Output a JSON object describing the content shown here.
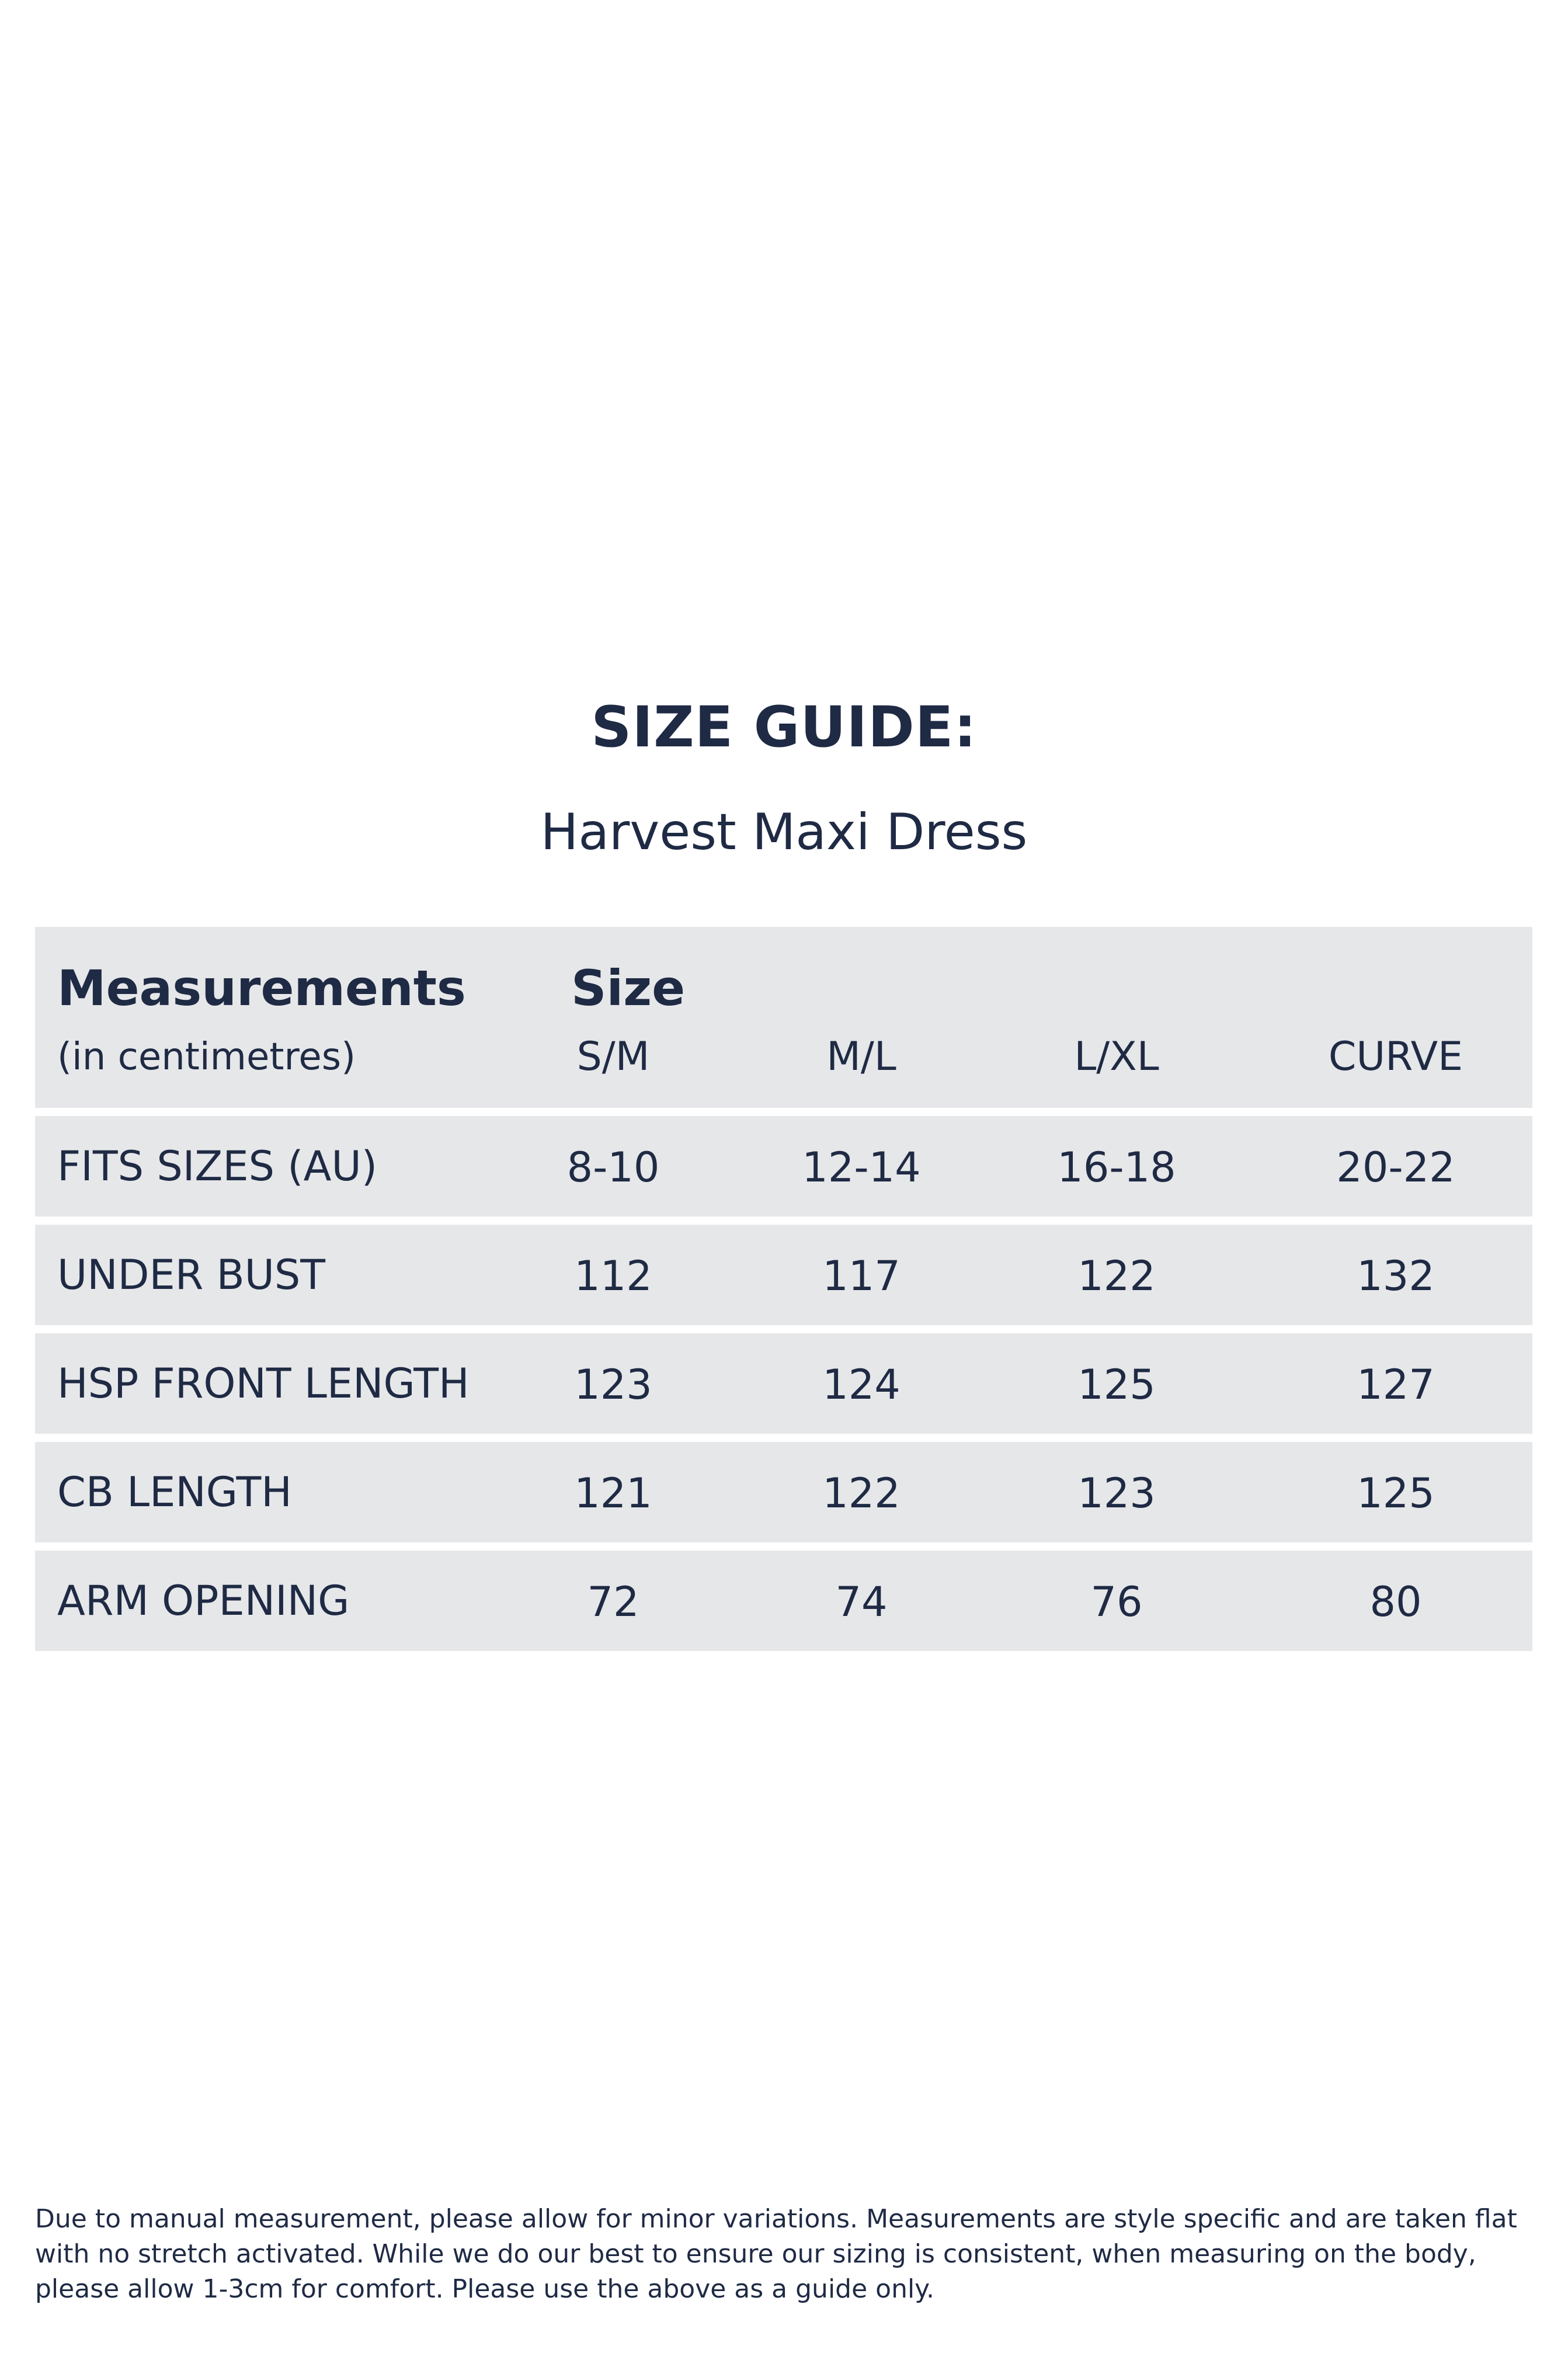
{
  "header": {
    "title": "SIZE GUIDE:",
    "subtitle": "Harvest Maxi Dress"
  },
  "table": {
    "measurements_label": "Measurements",
    "units_label": "(in centimetres)",
    "size_label": "Size",
    "columns": [
      "S/M",
      "M/L",
      "L/XL",
      "CURVE"
    ],
    "rows": [
      {
        "label": "FITS SIZES (AU)",
        "values": [
          "8-10",
          "12-14",
          "16-18",
          "20-22"
        ]
      },
      {
        "label": "UNDER BUST",
        "values": [
          "112",
          "117",
          "122",
          "132"
        ]
      },
      {
        "label": "HSP FRONT LENGTH",
        "values": [
          "123",
          "124",
          "125",
          "127"
        ]
      },
      {
        "label": "CB LENGTH",
        "values": [
          "121",
          "122",
          "123",
          "125"
        ]
      },
      {
        "label": "ARM OPENING",
        "values": [
          "72",
          "74",
          "76",
          "80"
        ]
      }
    ]
  },
  "footer": {
    "disclaimer": "Due to manual measurement, please allow for minor variations. Measurements are style specific and are taken flat with no stretch activated. While we do our best to ensure our sizing is consistent, when measuring on the body, please allow 1-3cm for comfort. Please use the above as a guide only."
  },
  "colors": {
    "text": "#1f2a44",
    "row_background": "#e6e7e9",
    "page_background": "#ffffff"
  }
}
